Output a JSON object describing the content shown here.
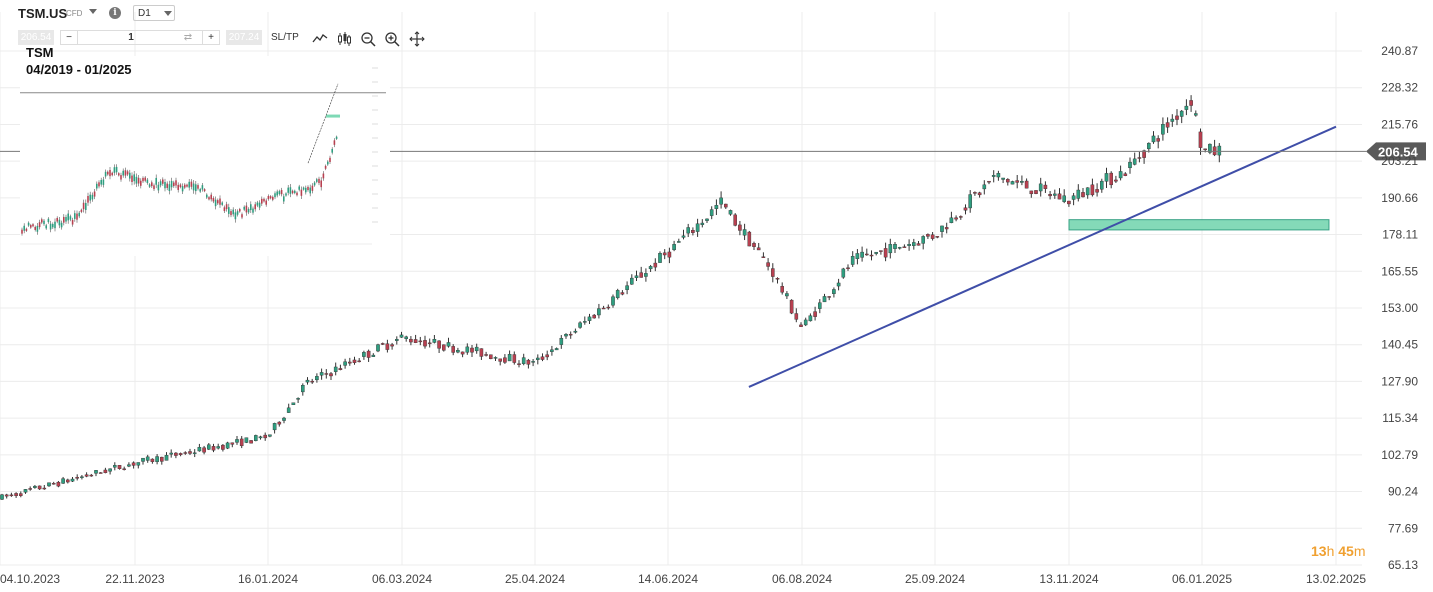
{
  "toolbar": {
    "symbol": "TSM.US",
    "symbol_type": "CFD",
    "timeframe": "D1",
    "bid": "206.54",
    "ask": "207.24",
    "quantity": "1",
    "minus": "−",
    "plus": "+",
    "swap": "⇄",
    "sltp_label": "SL/TP",
    "icons": [
      "line-chart-icon",
      "candlestick-icon",
      "zoom-out-icon",
      "zoom-in-icon",
      "crosshair-move-icon"
    ]
  },
  "timer": {
    "hours": "13",
    "h": "h",
    "minutes": "45",
    "m": "m"
  },
  "inset": {
    "ticker": "TSM",
    "range": "04/2019 - 01/2025"
  },
  "colors": {
    "up": "#2f9e80",
    "down": "#b84050",
    "trendline": "#3f4ea8",
    "zone": "#7ed9b5",
    "price_label": "#5a5a5a"
  },
  "chart_data": {
    "type": "candlestick",
    "y_axis": {
      "ticks": [
        "240.87",
        "228.32",
        "215.76",
        "203.21",
        "190.66",
        "178.11",
        "165.55",
        "153.00",
        "140.45",
        "127.90",
        "115.34",
        "102.79",
        "90.24",
        "77.69",
        "65.13"
      ],
      "range": [
        65.13,
        240.87
      ]
    },
    "x_axis": {
      "ticks": [
        "04.10.2023",
        "22.11.2023",
        "16.01.2024",
        "06.03.2024",
        "25.04.2024",
        "14.06.2024",
        "06.08.2024",
        "25.09.2024",
        "13.11.2024",
        "06.01.2025",
        "13.02.2025"
      ]
    },
    "current_price": {
      "value": 206.54,
      "label": "206.54"
    },
    "trendline": {
      "start": {
        "date": "2024-07-16",
        "price": 126
      },
      "end": {
        "date": "2025-02-13",
        "price": 215
      }
    },
    "support_zone": {
      "from": "2024-11-13",
      "to": "2025-02-11",
      "low": 179.7,
      "high": 183.2
    },
    "price_path": [
      [
        "04.10.2023",
        88
      ],
      [
        "22.11.2023",
        100
      ],
      [
        "16.01.2024",
        109
      ],
      [
        "30.01.2024",
        127
      ],
      [
        "06.03.2024",
        143
      ],
      [
        "25.04.2024",
        134
      ],
      [
        "14.06.2024",
        172
      ],
      [
        "05.07.2024",
        189
      ],
      [
        "25.07.2024",
        166
      ],
      [
        "06.08.2024",
        146
      ],
      [
        "25.08.2024",
        169
      ],
      [
        "25.09.2024",
        178
      ],
      [
        "17.10.2024",
        198
      ],
      [
        "13.11.2024",
        190
      ],
      [
        "06.12.2024",
        200
      ],
      [
        "02.01.2025",
        225
      ],
      [
        "06.01.2025",
        206.54
      ]
    ]
  }
}
